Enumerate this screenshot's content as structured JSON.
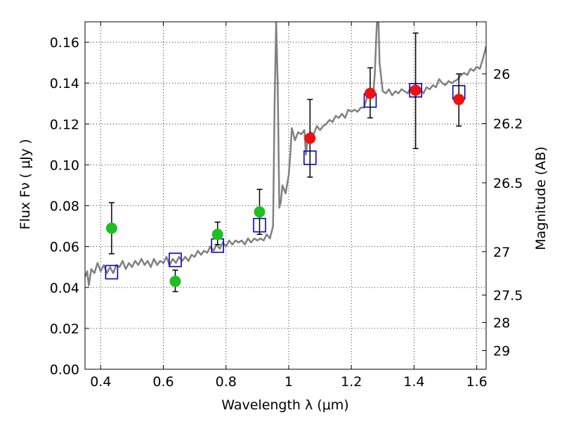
{
  "chart_data": {
    "type": "scatter",
    "xlabel": "Wavelength  λ (μm)",
    "ylabel": "Flux  Fν  ( μJy )",
    "y2label": "Magnitude (AB)",
    "xlim": [
      0.35,
      1.63
    ],
    "ylim": [
      0.0,
      0.17
    ],
    "grid": true,
    "x_ticks": [
      0.4,
      0.6,
      0.8,
      1.0,
      1.2,
      1.4,
      1.6
    ],
    "x_tick_labels": [
      "0.4",
      "0.6",
      "0.8",
      "1",
      "1.2",
      "1.4",
      "1.6"
    ],
    "y_ticks": [
      0.0,
      0.02,
      0.04,
      0.06,
      0.08,
      0.1,
      0.12,
      0.14,
      0.16
    ],
    "y_tick_labels": [
      "0.00",
      "0.02",
      "0.04",
      "0.06",
      "0.08",
      "0.10",
      "0.12",
      "0.14",
      "0.16"
    ],
    "y2_ticks": [
      26,
      26.2,
      26.5,
      27,
      27.5,
      28,
      29
    ],
    "y2_tick_labels": [
      "26",
      "26.2",
      "26.5",
      "27",
      "27.5",
      "28",
      "29"
    ],
    "series": [
      {
        "kind": "line",
        "color": "#808080",
        "points": [
          [
            0.35,
            0.045
          ],
          [
            0.357,
            0.048
          ],
          [
            0.362,
            0.041
          ],
          [
            0.37,
            0.049
          ],
          [
            0.38,
            0.047
          ],
          [
            0.39,
            0.052
          ],
          [
            0.4,
            0.048
          ],
          [
            0.41,
            0.051
          ],
          [
            0.42,
            0.047
          ],
          [
            0.43,
            0.05
          ],
          [
            0.44,
            0.047
          ],
          [
            0.45,
            0.051
          ],
          [
            0.46,
            0.05
          ],
          [
            0.47,
            0.053
          ],
          [
            0.48,
            0.049
          ],
          [
            0.49,
            0.052
          ],
          [
            0.5,
            0.05
          ],
          [
            0.51,
            0.053
          ],
          [
            0.52,
            0.051
          ],
          [
            0.53,
            0.054
          ],
          [
            0.54,
            0.051
          ],
          [
            0.55,
            0.053
          ],
          [
            0.56,
            0.05
          ],
          [
            0.57,
            0.054
          ],
          [
            0.58,
            0.051
          ],
          [
            0.59,
            0.053
          ],
          [
            0.6,
            0.052
          ],
          [
            0.61,
            0.055
          ],
          [
            0.62,
            0.051
          ],
          [
            0.63,
            0.054
          ],
          [
            0.64,
            0.052
          ],
          [
            0.65,
            0.055
          ],
          [
            0.66,
            0.053
          ],
          [
            0.67,
            0.055
          ],
          [
            0.68,
            0.053
          ],
          [
            0.69,
            0.056
          ],
          [
            0.7,
            0.055
          ],
          [
            0.71,
            0.058
          ],
          [
            0.72,
            0.056
          ],
          [
            0.73,
            0.058
          ],
          [
            0.74,
            0.057
          ],
          [
            0.75,
            0.06
          ],
          [
            0.76,
            0.058
          ],
          [
            0.77,
            0.061
          ],
          [
            0.78,
            0.059
          ],
          [
            0.79,
            0.062
          ],
          [
            0.8,
            0.06
          ],
          [
            0.81,
            0.063
          ],
          [
            0.82,
            0.061
          ],
          [
            0.83,
            0.063
          ],
          [
            0.84,
            0.062
          ],
          [
            0.85,
            0.063
          ],
          [
            0.86,
            0.061
          ],
          [
            0.87,
            0.064
          ],
          [
            0.88,
            0.062
          ],
          [
            0.89,
            0.064
          ],
          [
            0.9,
            0.063
          ],
          [
            0.91,
            0.064
          ],
          [
            0.92,
            0.063
          ],
          [
            0.93,
            0.066
          ],
          [
            0.94,
            0.064
          ],
          [
            0.95,
            0.07
          ],
          [
            0.955,
            0.13
          ],
          [
            0.96,
            0.17
          ],
          [
            0.965,
            0.14
          ],
          [
            0.97,
            0.079
          ],
          [
            0.975,
            0.082
          ],
          [
            0.98,
            0.09
          ],
          [
            0.99,
            0.086
          ],
          [
            1.0,
            0.095
          ],
          [
            1.005,
            0.105
          ],
          [
            1.01,
            0.118
          ],
          [
            1.02,
            0.112
          ],
          [
            1.03,
            0.116
          ],
          [
            1.04,
            0.115
          ],
          [
            1.05,
            0.117
          ],
          [
            1.055,
            0.105
          ],
          [
            1.06,
            0.112
          ],
          [
            1.07,
            0.116
          ],
          [
            1.08,
            0.115
          ],
          [
            1.09,
            0.119
          ],
          [
            1.1,
            0.117
          ],
          [
            1.11,
            0.119
          ],
          [
            1.12,
            0.12
          ],
          [
            1.13,
            0.122
          ],
          [
            1.14,
            0.121
          ],
          [
            1.15,
            0.124
          ],
          [
            1.16,
            0.123
          ],
          [
            1.17,
            0.125
          ],
          [
            1.18,
            0.123
          ],
          [
            1.19,
            0.127
          ],
          [
            1.2,
            0.126
          ],
          [
            1.21,
            0.127
          ],
          [
            1.22,
            0.126
          ],
          [
            1.23,
            0.128
          ],
          [
            1.24,
            0.128
          ],
          [
            1.25,
            0.133
          ],
          [
            1.26,
            0.134
          ],
          [
            1.27,
            0.135
          ],
          [
            1.275,
            0.145
          ],
          [
            1.28,
            0.165
          ],
          [
            1.285,
            0.18
          ],
          [
            1.29,
            0.15
          ],
          [
            1.3,
            0.136
          ],
          [
            1.31,
            0.135
          ],
          [
            1.32,
            0.137
          ],
          [
            1.33,
            0.134
          ],
          [
            1.34,
            0.136
          ],
          [
            1.35,
            0.135
          ],
          [
            1.36,
            0.137
          ],
          [
            1.37,
            0.136
          ],
          [
            1.38,
            0.135
          ],
          [
            1.39,
            0.138
          ],
          [
            1.4,
            0.135
          ],
          [
            1.41,
            0.136
          ],
          [
            1.42,
            0.137
          ],
          [
            1.43,
            0.135
          ],
          [
            1.44,
            0.138
          ],
          [
            1.45,
            0.137
          ],
          [
            1.46,
            0.139
          ],
          [
            1.47,
            0.138
          ],
          [
            1.48,
            0.142
          ],
          [
            1.49,
            0.14
          ],
          [
            1.5,
            0.139
          ],
          [
            1.51,
            0.141
          ],
          [
            1.52,
            0.14
          ],
          [
            1.53,
            0.141
          ],
          [
            1.54,
            0.142
          ],
          [
            1.55,
            0.144
          ],
          [
            1.56,
            0.145
          ],
          [
            1.57,
            0.144
          ],
          [
            1.58,
            0.147
          ],
          [
            1.59,
            0.146
          ],
          [
            1.6,
            0.148
          ],
          [
            1.61,
            0.147
          ],
          [
            1.62,
            0.152
          ],
          [
            1.63,
            0.158
          ]
        ]
      },
      {
        "kind": "markers",
        "marker": "square-open",
        "color": "#0000cc",
        "points": [
          [
            0.435,
            0.0475
          ],
          [
            0.638,
            0.0535
          ],
          [
            0.773,
            0.0605
          ],
          [
            0.907,
            0.0705
          ],
          [
            1.068,
            0.1035
          ],
          [
            1.26,
            0.1315
          ],
          [
            1.405,
            0.1365
          ],
          [
            1.543,
            0.1355
          ]
        ]
      },
      {
        "kind": "markers",
        "marker": "circle",
        "color": "#1fbf1f",
        "points": [
          [
            0.435,
            0.069
          ],
          [
            0.638,
            0.043
          ],
          [
            0.773,
            0.066
          ],
          [
            0.907,
            0.077
          ]
        ],
        "yerr": [
          [
            0.0565,
            0.0815
          ],
          [
            0.038,
            0.0485
          ],
          [
            0.061,
            0.072
          ],
          [
            0.066,
            0.088
          ]
        ]
      },
      {
        "kind": "markers",
        "marker": "circle",
        "color": "#ee1111",
        "points": [
          [
            1.068,
            0.113
          ],
          [
            1.26,
            0.135
          ],
          [
            1.405,
            0.1365
          ],
          [
            1.543,
            0.132
          ]
        ],
        "yerr": [
          [
            0.094,
            0.132
          ],
          [
            0.123,
            0.1475
          ],
          [
            0.108,
            0.1645
          ],
          [
            0.119,
            0.1445
          ]
        ]
      }
    ]
  }
}
